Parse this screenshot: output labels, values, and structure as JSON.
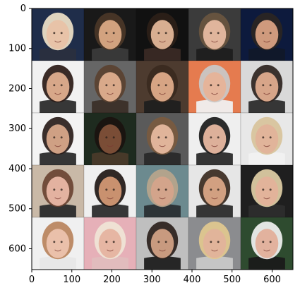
{
  "figure": {
    "type": "image-grid",
    "grid": {
      "rows": 5,
      "cols": 5
    },
    "x_axis": {
      "ticks": [
        "0",
        "100",
        "200",
        "300",
        "400",
        "500",
        "600"
      ],
      "tick_values": [
        0,
        100,
        200,
        300,
        400,
        500,
        600
      ],
      "range": [
        0,
        652
      ]
    },
    "y_axis": {
      "ticks": [
        "0",
        "100",
        "200",
        "300",
        "400",
        "500",
        "600"
      ],
      "tick_values": [
        0,
        100,
        200,
        300,
        400,
        500,
        600
      ],
      "range": [
        0,
        652
      ]
    },
    "tiles": [
      {
        "name": "r1c1",
        "bg": "#1f2d4a",
        "skin": "#e8c3a8",
        "hair": "#efe2c8",
        "shirt": "#2a2f3e"
      },
      {
        "name": "r1c2",
        "bg": "#191919",
        "skin": "#d2a27f",
        "hair": "#4a3627",
        "shirt": "#3a3a3a"
      },
      {
        "name": "r1c3",
        "bg": "#111111",
        "skin": "#d8ae91",
        "hair": "#2d1f18",
        "shirt": "#3a2a25"
      },
      {
        "name": "r1c4",
        "bg": "#3b3b3b",
        "skin": "#e0b59c",
        "hair": "#6a5640",
        "shirt": "#1d1d1d"
      },
      {
        "name": "r1c5",
        "bg": "#0d1a3d",
        "skin": "#cf9a7d",
        "hair": "#2a2522",
        "shirt": "#111829"
      },
      {
        "name": "r2c1",
        "bg": "#f1f1f1",
        "skin": "#d7a789",
        "hair": "#2a1a16",
        "shirt": "#2c2c2c"
      },
      {
        "name": "r2c2",
        "bg": "#666666",
        "skin": "#d9a98a",
        "hair": "#5a4130",
        "shirt": "#3b2f28"
      },
      {
        "name": "r2c3",
        "bg": "#4d3b2f",
        "skin": "#d6a484",
        "hair": "#3a2a20",
        "shirt": "#1f1f1f"
      },
      {
        "name": "r2c4",
        "bg": "#e57b4f",
        "skin": "#e5b49a",
        "hair": "#c9c9c9",
        "shirt": "#f0f0f0"
      },
      {
        "name": "r2c5",
        "bg": "#d9d9d9",
        "skin": "#d7a589",
        "hair": "#2e241f",
        "shirt": "#2d2d2d"
      },
      {
        "name": "r3c1",
        "bg": "#f3f3f3",
        "skin": "#cfa084",
        "hair": "#2a1d1a",
        "shirt": "#2b2b2b"
      },
      {
        "name": "r3c2",
        "bg": "#1e2b1f",
        "skin": "#7a4d36",
        "hair": "#1a120f",
        "shirt": "#4a3a2a"
      },
      {
        "name": "r3c3",
        "bg": "#5a5a5a",
        "skin": "#e0b49a",
        "hair": "#7a5a3f",
        "shirt": "#2a2a2a"
      },
      {
        "name": "r3c4",
        "bg": "#efefef",
        "skin": "#ddb09a",
        "hair": "#1a1a1a",
        "shirt": "#2a2a2a"
      },
      {
        "name": "r3c5",
        "bg": "#e8e8e8",
        "skin": "#e1b49a",
        "hair": "#d7c29a",
        "shirt": "#f1f1f1"
      },
      {
        "name": "r4c1",
        "bg": "#c9b9a7",
        "skin": "#e3b2a0",
        "hair": "#6a4332",
        "shirt": "#2b2b2b"
      },
      {
        "name": "r4c2",
        "bg": "#efefef",
        "skin": "#c9916f",
        "hair": "#1f1714",
        "shirt": "#2c2c2c"
      },
      {
        "name": "r4c3",
        "bg": "#6c8a8f",
        "skin": "#d3a48b",
        "hair": "#b9a58c",
        "shirt": "#2a2f33"
      },
      {
        "name": "r4c4",
        "bg": "#e6e6e6",
        "skin": "#d2a081",
        "hair": "#3a2a20",
        "shirt": "#2b2b2b"
      },
      {
        "name": "r4c5",
        "bg": "#1f1f1f",
        "skin": "#e2b39a",
        "hair": "#e1cfa6",
        "shirt": "#2d2d2d"
      },
      {
        "name": "r5c1",
        "bg": "#f0f0f0",
        "skin": "#eac0aa",
        "hair": "#b9835c",
        "shirt": "#e7e7e7"
      },
      {
        "name": "r5c2",
        "bg": "#e6b0b8",
        "skin": "#e6b6a3",
        "hair": "#f0e5d6",
        "shirt": "#e0bdbd"
      },
      {
        "name": "r5c3",
        "bg": "#bfbfbf",
        "skin": "#c89a7f",
        "hair": "#2b211c",
        "shirt": "#1d1d1d"
      },
      {
        "name": "r5c4",
        "bg": "#8b8c8f",
        "skin": "#e1b49a",
        "hair": "#e2c98f",
        "shirt": "#c8c8c8"
      },
      {
        "name": "r5c5",
        "bg": "#2e4b2f",
        "skin": "#e2b29e",
        "hair": "#f2f2f2",
        "shirt": "#1a1a1a"
      }
    ]
  }
}
